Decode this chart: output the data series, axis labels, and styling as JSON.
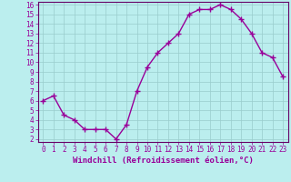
{
  "x": [
    0,
    1,
    2,
    3,
    4,
    5,
    6,
    7,
    8,
    9,
    10,
    11,
    12,
    13,
    14,
    15,
    16,
    17,
    18,
    19,
    20,
    21,
    22,
    23
  ],
  "y": [
    6.0,
    6.5,
    4.5,
    4.0,
    3.0,
    3.0,
    3.0,
    2.0,
    3.5,
    7.0,
    9.5,
    11.0,
    12.0,
    13.0,
    15.0,
    15.5,
    15.5,
    16.0,
    15.5,
    14.5,
    13.0,
    11.0,
    10.5,
    8.5
  ],
  "line_color": "#990099",
  "marker": "+",
  "bg_color": "#bbeeee",
  "grid_color": "#99cccc",
  "xlabel": "Windchill (Refroidissement éolien,°C)",
  "xlabel_color": "#990099",
  "ylim": [
    2,
    16
  ],
  "xlim": [
    -0.5,
    23.5
  ],
  "yticks": [
    2,
    3,
    4,
    5,
    6,
    7,
    8,
    9,
    10,
    11,
    12,
    13,
    14,
    15,
    16
  ],
  "xticks": [
    0,
    1,
    2,
    3,
    4,
    5,
    6,
    7,
    8,
    9,
    10,
    11,
    12,
    13,
    14,
    15,
    16,
    17,
    18,
    19,
    20,
    21,
    22,
    23
  ],
  "tick_color": "#990099",
  "spine_color": "#660066",
  "font_family": "monospace",
  "tick_fontsize": 5.5,
  "xlabel_fontsize": 6.5
}
